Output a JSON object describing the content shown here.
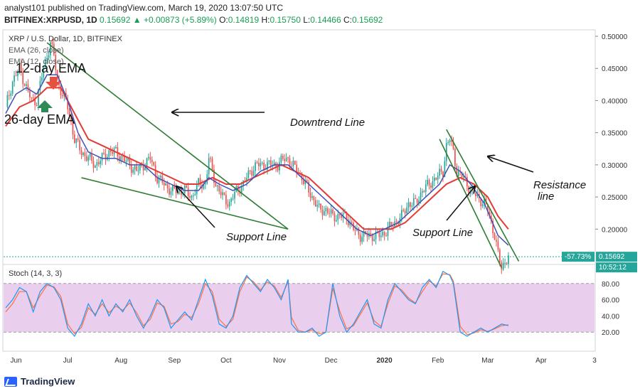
{
  "header": {
    "published_line": "analyst101 published on TradingView.com, March 19, 2020 13:07:50 UTC",
    "symbol": "BITFINEX:XRPUSD, 1D",
    "last": "0.15692",
    "change": "▲ +0.00873 (+5.89%)",
    "ohlc_labels": [
      "O:",
      "H:",
      "L:",
      "C:"
    ],
    "ohlc_values": [
      "0.14819",
      "0.15750",
      "0.14466",
      "0.15692"
    ]
  },
  "legend": {
    "title": "XRP / U.S. Dollar, 1D, BITFINEX",
    "ema26": "EMA (26, close)",
    "ema12": "EMA (12, close)"
  },
  "annotations": {
    "ema12_label": "12-day EMA",
    "ema26_label": "26-day EMA",
    "downtrend": "Downtrend Line",
    "support1": "Support Line",
    "support2": "Support Line",
    "resistance_1": "Resistance",
    "resistance_2": "line"
  },
  "price_scale": {
    "tag_pct": "-57.73%",
    "tag_price": "0.15692",
    "countdown": "10:52:12"
  },
  "stoch": {
    "label": "Stoch (14, 3, 3)"
  },
  "footer": {
    "brand": "TradingView"
  },
  "colors": {
    "candle_up": "#26a69a",
    "candle_down": "#ef5350",
    "ema26": "#e53935",
    "ema12": "#3f51b5",
    "trendline": "#2e7d32",
    "stoch_k": "#2196f3",
    "stoch_d": "#ff7043",
    "stoch_band": "#e1bee7"
  },
  "chart_data": {
    "type": "candlestick",
    "title": "XRP / U.S. Dollar, 1D, BITFINEX",
    "y_ticks": [
      "0.50000",
      "0.45000",
      "0.40000",
      "0.35000",
      "0.30000",
      "0.25000",
      "0.20000"
    ],
    "ylim": [
      0.145,
      0.51
    ],
    "x_ticks": [
      "Jun",
      "Jul",
      "Aug",
      "Sep",
      "Oct",
      "Nov",
      "Dec",
      "2020",
      "Feb",
      "Mar",
      "Apr",
      "3"
    ],
    "x_tick_index": [
      6,
      36,
      67,
      98,
      128,
      159,
      189,
      220,
      251,
      280,
      311,
      342
    ],
    "close_path": [
      [
        0,
        0.39
      ],
      [
        4,
        0.43
      ],
      [
        8,
        0.45
      ],
      [
        12,
        0.42
      ],
      [
        15,
        0.4
      ],
      [
        18,
        0.4
      ],
      [
        22,
        0.45
      ],
      [
        26,
        0.49
      ],
      [
        28,
        0.47
      ],
      [
        30,
        0.43
      ],
      [
        33,
        0.41
      ],
      [
        36,
        0.39
      ],
      [
        40,
        0.34
      ],
      [
        44,
        0.32
      ],
      [
        48,
        0.31
      ],
      [
        52,
        0.3
      ],
      [
        56,
        0.31
      ],
      [
        60,
        0.32
      ],
      [
        64,
        0.32
      ],
      [
        68,
        0.31
      ],
      [
        72,
        0.3
      ],
      [
        76,
        0.29
      ],
      [
        80,
        0.3
      ],
      [
        84,
        0.31
      ],
      [
        88,
        0.28
      ],
      [
        92,
        0.27
      ],
      [
        96,
        0.26
      ],
      [
        100,
        0.26
      ],
      [
        104,
        0.26
      ],
      [
        108,
        0.25
      ],
      [
        112,
        0.27
      ],
      [
        116,
        0.27
      ],
      [
        118,
        0.31
      ],
      [
        120,
        0.29
      ],
      [
        122,
        0.27
      ],
      [
        126,
        0.25
      ],
      [
        130,
        0.24
      ],
      [
        134,
        0.26
      ],
      [
        138,
        0.27
      ],
      [
        142,
        0.29
      ],
      [
        146,
        0.3
      ],
      [
        150,
        0.3
      ],
      [
        154,
        0.3
      ],
      [
        158,
        0.3
      ],
      [
        162,
        0.31
      ],
      [
        164,
        0.31
      ],
      [
        166,
        0.3
      ],
      [
        170,
        0.29
      ],
      [
        174,
        0.27
      ],
      [
        178,
        0.25
      ],
      [
        182,
        0.23
      ],
      [
        186,
        0.23
      ],
      [
        190,
        0.22
      ],
      [
        194,
        0.22
      ],
      [
        198,
        0.22
      ],
      [
        202,
        0.2
      ],
      [
        206,
        0.19
      ],
      [
        210,
        0.19
      ],
      [
        214,
        0.19
      ],
      [
        218,
        0.19
      ],
      [
        222,
        0.2
      ],
      [
        226,
        0.21
      ],
      [
        230,
        0.22
      ],
      [
        234,
        0.24
      ],
      [
        238,
        0.24
      ],
      [
        242,
        0.26
      ],
      [
        246,
        0.27
      ],
      [
        250,
        0.28
      ],
      [
        254,
        0.29
      ],
      [
        256,
        0.33
      ],
      [
        258,
        0.34
      ],
      [
        260,
        0.32
      ],
      [
        262,
        0.29
      ],
      [
        266,
        0.28
      ],
      [
        270,
        0.26
      ],
      [
        274,
        0.25
      ],
      [
        278,
        0.24
      ],
      [
        280,
        0.23
      ],
      [
        282,
        0.21
      ],
      [
        284,
        0.19
      ],
      [
        286,
        0.16
      ],
      [
        288,
        0.14
      ],
      [
        290,
        0.15
      ],
      [
        292,
        0.157
      ]
    ],
    "ema12_path": [
      [
        0,
        0.38
      ],
      [
        6,
        0.41
      ],
      [
        12,
        0.42
      ],
      [
        18,
        0.41
      ],
      [
        24,
        0.44
      ],
      [
        30,
        0.44
      ],
      [
        36,
        0.4
      ],
      [
        42,
        0.35
      ],
      [
        48,
        0.32
      ],
      [
        56,
        0.31
      ],
      [
        64,
        0.31
      ],
      [
        72,
        0.3
      ],
      [
        80,
        0.3
      ],
      [
        88,
        0.28
      ],
      [
        96,
        0.27
      ],
      [
        104,
        0.26
      ],
      [
        112,
        0.26
      ],
      [
        118,
        0.28
      ],
      [
        124,
        0.27
      ],
      [
        132,
        0.26
      ],
      [
        140,
        0.27
      ],
      [
        148,
        0.29
      ],
      [
        156,
        0.3
      ],
      [
        164,
        0.3
      ],
      [
        172,
        0.28
      ],
      [
        180,
        0.26
      ],
      [
        188,
        0.24
      ],
      [
        196,
        0.22
      ],
      [
        204,
        0.2
      ],
      [
        212,
        0.19
      ],
      [
        220,
        0.2
      ],
      [
        228,
        0.21
      ],
      [
        236,
        0.23
      ],
      [
        244,
        0.25
      ],
      [
        252,
        0.27
      ],
      [
        258,
        0.3
      ],
      [
        264,
        0.29
      ],
      [
        270,
        0.27
      ],
      [
        278,
        0.24
      ],
      [
        286,
        0.19
      ],
      [
        292,
        0.175
      ]
    ],
    "ema26_path": [
      [
        0,
        0.36
      ],
      [
        8,
        0.39
      ],
      [
        16,
        0.4
      ],
      [
        24,
        0.42
      ],
      [
        32,
        0.42
      ],
      [
        40,
        0.38
      ],
      [
        48,
        0.34
      ],
      [
        56,
        0.33
      ],
      [
        64,
        0.32
      ],
      [
        72,
        0.31
      ],
      [
        80,
        0.3
      ],
      [
        88,
        0.29
      ],
      [
        96,
        0.28
      ],
      [
        104,
        0.27
      ],
      [
        112,
        0.27
      ],
      [
        120,
        0.28
      ],
      [
        128,
        0.27
      ],
      [
        136,
        0.27
      ],
      [
        144,
        0.28
      ],
      [
        152,
        0.29
      ],
      [
        160,
        0.3
      ],
      [
        168,
        0.29
      ],
      [
        176,
        0.28
      ],
      [
        184,
        0.26
      ],
      [
        192,
        0.24
      ],
      [
        200,
        0.22
      ],
      [
        208,
        0.2
      ],
      [
        216,
        0.2
      ],
      [
        224,
        0.2
      ],
      [
        232,
        0.21
      ],
      [
        240,
        0.23
      ],
      [
        248,
        0.25
      ],
      [
        256,
        0.27
      ],
      [
        264,
        0.28
      ],
      [
        272,
        0.27
      ],
      [
        280,
        0.25
      ],
      [
        286,
        0.22
      ],
      [
        292,
        0.2
      ]
    ],
    "trendlines": [
      {
        "name": "downtrend",
        "from": [
          24,
          0.49
        ],
        "to": [
          164,
          0.2
        ]
      },
      {
        "name": "support",
        "from": [
          44,
          0.28
        ],
        "to": [
          164,
          0.2
        ]
      },
      {
        "name": "channel-lower",
        "from": [
          252,
          0.34
        ],
        "to": [
          288,
          0.14
        ]
      },
      {
        "name": "channel-upper",
        "from": [
          256,
          0.355
        ],
        "to": [
          298,
          0.15
        ]
      }
    ],
    "stoch": {
      "y_ticks": [
        "80.00",
        "60.00",
        "40.00",
        "20.00"
      ],
      "ylim": [
        0,
        100
      ],
      "band": [
        20,
        80
      ],
      "k_path": [
        [
          0,
          50
        ],
        [
          4,
          60
        ],
        [
          8,
          75
        ],
        [
          12,
          70
        ],
        [
          16,
          45
        ],
        [
          20,
          70
        ],
        [
          24,
          80
        ],
        [
          28,
          75
        ],
        [
          32,
          60
        ],
        [
          36,
          25
        ],
        [
          40,
          15
        ],
        [
          44,
          30
        ],
        [
          48,
          55
        ],
        [
          52,
          40
        ],
        [
          56,
          60
        ],
        [
          60,
          40
        ],
        [
          64,
          55
        ],
        [
          68,
          45
        ],
        [
          72,
          60
        ],
        [
          76,
          40
        ],
        [
          80,
          25
        ],
        [
          84,
          40
        ],
        [
          88,
          60
        ],
        [
          92,
          50
        ],
        [
          96,
          25
        ],
        [
          100,
          35
        ],
        [
          104,
          45
        ],
        [
          108,
          35
        ],
        [
          112,
          60
        ],
        [
          116,
          85
        ],
        [
          120,
          65
        ],
        [
          124,
          30
        ],
        [
          128,
          25
        ],
        [
          132,
          40
        ],
        [
          136,
          75
        ],
        [
          140,
          90
        ],
        [
          144,
          80
        ],
        [
          148,
          70
        ],
        [
          152,
          85
        ],
        [
          156,
          75
        ],
        [
          160,
          60
        ],
        [
          164,
          85
        ],
        [
          166,
          30
        ],
        [
          170,
          20
        ],
        [
          174,
          20
        ],
        [
          178,
          25
        ],
        [
          182,
          15
        ],
        [
          186,
          20
        ],
        [
          190,
          80
        ],
        [
          194,
          40
        ],
        [
          198,
          20
        ],
        [
          202,
          30
        ],
        [
          206,
          45
        ],
        [
          210,
          60
        ],
        [
          214,
          30
        ],
        [
          218,
          25
        ],
        [
          222,
          60
        ],
        [
          226,
          80
        ],
        [
          230,
          70
        ],
        [
          234,
          60
        ],
        [
          238,
          55
        ],
        [
          242,
          75
        ],
        [
          246,
          85
        ],
        [
          250,
          75
        ],
        [
          254,
          95
        ],
        [
          258,
          90
        ],
        [
          260,
          80
        ],
        [
          264,
          20
        ],
        [
          268,
          15
        ],
        [
          272,
          20
        ],
        [
          276,
          25
        ],
        [
          280,
          20
        ],
        [
          284,
          25
        ],
        [
          288,
          30
        ],
        [
          292,
          28
        ]
      ],
      "d_path": [
        [
          0,
          45
        ],
        [
          4,
          55
        ],
        [
          8,
          70
        ],
        [
          12,
          70
        ],
        [
          16,
          50
        ],
        [
          20,
          65
        ],
        [
          24,
          78
        ],
        [
          28,
          76
        ],
        [
          32,
          64
        ],
        [
          36,
          30
        ],
        [
          40,
          18
        ],
        [
          44,
          26
        ],
        [
          48,
          50
        ],
        [
          52,
          42
        ],
        [
          56,
          55
        ],
        [
          60,
          44
        ],
        [
          64,
          52
        ],
        [
          68,
          47
        ],
        [
          72,
          56
        ],
        [
          76,
          44
        ],
        [
          80,
          28
        ],
        [
          84,
          36
        ],
        [
          88,
          56
        ],
        [
          92,
          52
        ],
        [
          96,
          30
        ],
        [
          100,
          33
        ],
        [
          104,
          42
        ],
        [
          108,
          38
        ],
        [
          112,
          55
        ],
        [
          116,
          80
        ],
        [
          120,
          70
        ],
        [
          124,
          36
        ],
        [
          128,
          27
        ],
        [
          132,
          36
        ],
        [
          136,
          70
        ],
        [
          140,
          88
        ],
        [
          144,
          82
        ],
        [
          148,
          72
        ],
        [
          152,
          82
        ],
        [
          156,
          77
        ],
        [
          160,
          63
        ],
        [
          164,
          82
        ],
        [
          166,
          38
        ],
        [
          170,
          22
        ],
        [
          174,
          20
        ],
        [
          178,
          23
        ],
        [
          182,
          18
        ],
        [
          186,
          20
        ],
        [
          190,
          74
        ],
        [
          194,
          46
        ],
        [
          198,
          24
        ],
        [
          202,
          28
        ],
        [
          206,
          42
        ],
        [
          210,
          56
        ],
        [
          214,
          34
        ],
        [
          218,
          27
        ],
        [
          222,
          55
        ],
        [
          226,
          77
        ],
        [
          230,
          72
        ],
        [
          234,
          62
        ],
        [
          238,
          56
        ],
        [
          242,
          70
        ],
        [
          246,
          83
        ],
        [
          250,
          77
        ],
        [
          254,
          92
        ],
        [
          258,
          91
        ],
        [
          260,
          83
        ],
        [
          264,
          27
        ],
        [
          268,
          17
        ],
        [
          272,
          19
        ],
        [
          276,
          23
        ],
        [
          280,
          21
        ],
        [
          284,
          24
        ],
        [
          288,
          28
        ],
        [
          292,
          29
        ]
      ]
    }
  }
}
